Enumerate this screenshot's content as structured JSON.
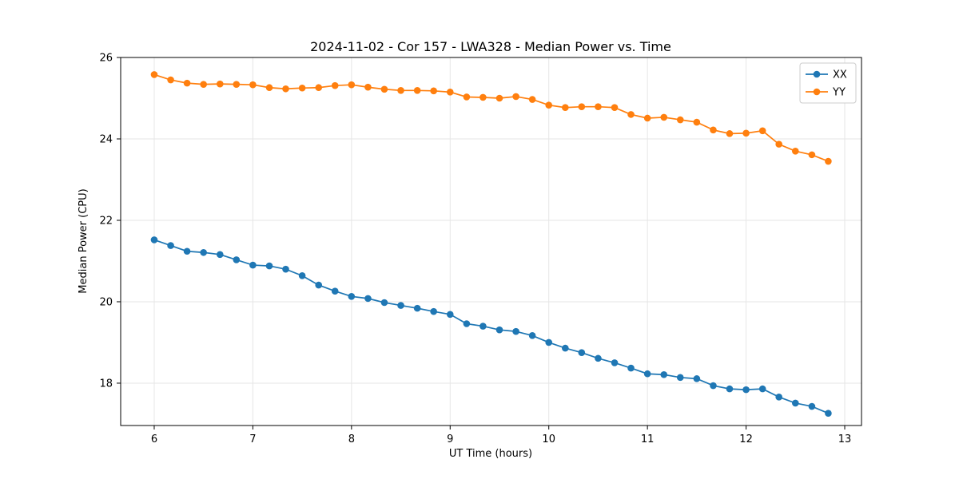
{
  "chart_data": {
    "type": "line",
    "title": "2024-11-02 - Cor 157 - LWA328 - Median Power vs. Time",
    "xlabel": "UT Time (hours)",
    "ylabel": "Median Power (CPU)",
    "xlim": [
      5.66,
      13.17
    ],
    "ylim": [
      16.96,
      26.0
    ],
    "xticks": [
      6,
      7,
      8,
      9,
      10,
      11,
      12,
      13
    ],
    "yticks": [
      18,
      20,
      22,
      24,
      26
    ],
    "grid": true,
    "grid_color": "#e6e6e6",
    "legend_position": "upper right",
    "x": [
      6.0,
      6.167,
      6.333,
      6.5,
      6.667,
      6.833,
      7.0,
      7.167,
      7.333,
      7.5,
      7.667,
      7.833,
      8.0,
      8.167,
      8.333,
      8.5,
      8.667,
      8.833,
      9.0,
      9.167,
      9.333,
      9.5,
      9.667,
      9.833,
      10.0,
      10.167,
      10.333,
      10.5,
      10.667,
      10.833,
      11.0,
      11.167,
      11.333,
      11.5,
      11.667,
      11.833,
      12.0,
      12.167,
      12.333,
      12.5,
      12.667,
      12.833
    ],
    "series": [
      {
        "name": "XX",
        "color": "#1f77b4",
        "values": [
          21.52,
          21.38,
          21.24,
          21.21,
          21.16,
          21.03,
          20.9,
          20.88,
          20.8,
          20.64,
          20.41,
          20.26,
          20.13,
          20.08,
          19.98,
          19.91,
          19.84,
          19.76,
          19.69,
          19.46,
          19.4,
          19.31,
          19.27,
          19.17,
          19.0,
          18.86,
          18.75,
          18.61,
          18.5,
          18.37,
          18.23,
          18.21,
          18.14,
          18.11,
          17.94,
          17.86,
          17.84,
          17.86,
          17.66,
          17.51,
          17.43,
          17.26
        ]
      },
      {
        "name": "YY",
        "color": "#ff7f0e",
        "values": [
          25.58,
          25.45,
          25.37,
          25.34,
          25.35,
          25.34,
          25.33,
          25.26,
          25.23,
          25.25,
          25.26,
          25.31,
          25.33,
          25.27,
          25.22,
          25.19,
          25.19,
          25.18,
          25.15,
          25.03,
          25.02,
          25.0,
          25.04,
          24.97,
          24.83,
          24.77,
          24.79,
          24.79,
          24.77,
          24.6,
          24.51,
          24.53,
          24.47,
          24.41,
          24.22,
          24.13,
          24.14,
          24.2,
          23.87,
          23.7,
          23.61,
          23.45
        ]
      }
    ]
  }
}
